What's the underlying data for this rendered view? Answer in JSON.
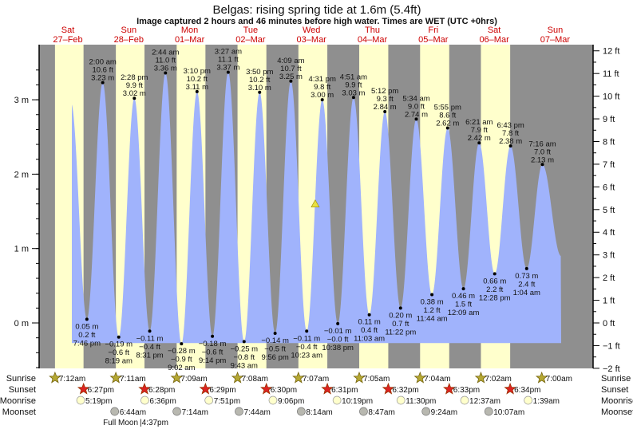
{
  "header": {
    "title": "Belgas: rising  spring tide at 1.6m (5.4ft)",
    "subtitle": "Image captured 2 hours and 46 minutes before high water. Times are WET (UTC +0hrs)"
  },
  "colors": {
    "night": "#8f8f8f",
    "day": "#ffffcc",
    "water": "#a0b3fc",
    "day_label": "#cc0000",
    "sunrise": "#b5a833",
    "sunset": "#dd2222",
    "moonrise": "#ffffcc",
    "moonset": "#b8b8b0",
    "marker": "#e8e040"
  },
  "rows": {
    "sunrise": "Sunrise",
    "sunset": "Sunset",
    "moonrise": "Moonrise",
    "moonset": "Moonset"
  },
  "moon_phase": {
    "label": "Full Moon",
    "time": "|4:37pm",
    "day": 1
  },
  "chart_data": {
    "type": "area",
    "title": "Belgas: rising  spring tide at 1.6m (5.4ft)",
    "days": [
      {
        "dow": "Sat",
        "date": "27–Feb"
      },
      {
        "dow": "Sun",
        "date": "28–Feb"
      },
      {
        "dow": "Mon",
        "date": "01–Mar"
      },
      {
        "dow": "Tue",
        "date": "02–Mar"
      },
      {
        "dow": "Wed",
        "date": "03–Mar"
      },
      {
        "dow": "Thu",
        "date": "04–Mar"
      },
      {
        "dow": "Fri",
        "date": "05–Mar"
      },
      {
        "dow": "Sat",
        "date": "06–Mar"
      },
      {
        "dow": "Sun",
        "date": "07–Mar"
      }
    ],
    "left_axis": {
      "unit": "m",
      "ticks": [
        "0 m",
        "1 m",
        "2 m",
        "3 m"
      ],
      "values": [
        0,
        1,
        2,
        3
      ]
    },
    "right_axis": {
      "unit": "ft",
      "ticks": [
        "−2 ft",
        "−1 ft",
        "0 ft",
        "1 ft",
        "2 ft",
        "3 ft",
        "4 ft",
        "5 ft",
        "6 ft",
        "7 ft",
        "8 ft",
        "9 ft",
        "10 ft",
        "11 ft",
        "12 ft"
      ],
      "values": [
        -2,
        -1,
        0,
        1,
        2,
        3,
        4,
        5,
        6,
        7,
        8,
        9,
        10,
        11,
        12
      ]
    },
    "current": {
      "day": 4,
      "time": "1:45 pm",
      "height_m": 1.6,
      "height_ft": 5.4
    },
    "extremes": [
      {
        "type": "low",
        "day": 0,
        "time": "7:46 pm",
        "m": "0.05 m",
        "ft": "0.2 ft",
        "h": 0.05
      },
      {
        "type": "high",
        "day": 1,
        "time": "2:00 am",
        "m": "3.23 m",
        "ft": "10.6 ft",
        "h": 3.23
      },
      {
        "type": "low",
        "day": 1,
        "time": "8:19 am",
        "m": "−0.19 m",
        "ft": "−0.6 ft",
        "h": -0.19
      },
      {
        "type": "high",
        "day": 1,
        "time": "2:28 pm",
        "m": "3.02 m",
        "ft": "9.9 ft",
        "h": 3.02
      },
      {
        "type": "low",
        "day": 1,
        "time": "8:31 pm",
        "m": "−0.11 m",
        "ft": "−0.4 ft",
        "h": -0.11
      },
      {
        "type": "high",
        "day": 2,
        "time": "2:44 am",
        "m": "3.36 m",
        "ft": "11.0 ft",
        "h": 3.36
      },
      {
        "type": "low",
        "day": 2,
        "time": "9:02 am",
        "m": "−0.28 m",
        "ft": "−0.9 ft",
        "h": -0.28
      },
      {
        "type": "high",
        "day": 2,
        "time": "3:10 pm",
        "m": "3.11 m",
        "ft": "10.2 ft",
        "h": 3.11
      },
      {
        "type": "low",
        "day": 2,
        "time": "9:14 pm",
        "m": "−0.18 m",
        "ft": "−0.6 ft",
        "h": -0.18
      },
      {
        "type": "high",
        "day": 3,
        "time": "3:27 am",
        "m": "3.37 m",
        "ft": "11.1 ft",
        "h": 3.37
      },
      {
        "type": "low",
        "day": 3,
        "time": "9:43 am",
        "m": "−0.25 m",
        "ft": "−0.8 ft",
        "h": -0.25
      },
      {
        "type": "high",
        "day": 3,
        "time": "3:50 pm",
        "m": "3.10 m",
        "ft": "10.2 ft",
        "h": 3.1
      },
      {
        "type": "low",
        "day": 3,
        "time": "9:56 pm",
        "m": "−0.14 m",
        "ft": "−0.5 ft",
        "h": -0.14
      },
      {
        "type": "high",
        "day": 4,
        "time": "4:09 am",
        "m": "3.25 m",
        "ft": "10.7 ft",
        "h": 3.25
      },
      {
        "type": "low",
        "day": 4,
        "time": "10:23 am",
        "m": "−0.11 m",
        "ft": "−0.4 ft",
        "h": -0.11
      },
      {
        "type": "high",
        "day": 4,
        "time": "4:31 pm",
        "m": "3.00 m",
        "ft": "9.8 ft",
        "h": 3.0
      },
      {
        "type": "low",
        "day": 4,
        "time": "10:38 pm",
        "m": "−0.01 m",
        "ft": "−0.0 ft",
        "h": -0.01
      },
      {
        "type": "high",
        "day": 5,
        "time": "4:51 am",
        "m": "3.03 m",
        "ft": "9.9 ft",
        "h": 3.03
      },
      {
        "type": "low",
        "day": 5,
        "time": "11:03 am",
        "m": "0.11 m",
        "ft": "0.4 ft",
        "h": 0.11
      },
      {
        "type": "high",
        "day": 5,
        "time": "5:12 pm",
        "m": "2.84 m",
        "ft": "9.3 ft",
        "h": 2.84
      },
      {
        "type": "low",
        "day": 5,
        "time": "11:22 pm",
        "m": "0.20 m",
        "ft": "0.7 ft",
        "h": 0.2
      },
      {
        "type": "high",
        "day": 6,
        "time": "5:34 am",
        "m": "2.74 m",
        "ft": "9.0 ft",
        "h": 2.74
      },
      {
        "type": "low",
        "day": 6,
        "time": "11:44 am",
        "m": "0.38 m",
        "ft": "1.2 ft",
        "h": 0.38
      },
      {
        "type": "high",
        "day": 6,
        "time": "5:55 pm",
        "m": "2.62 m",
        "ft": "8.6 ft",
        "h": 2.62
      },
      {
        "type": "low",
        "day": 7,
        "time": "12:09 am",
        "m": "0.46 m",
        "ft": "1.5 ft",
        "h": 0.46
      },
      {
        "type": "high",
        "day": 7,
        "time": "6:21 am",
        "m": "2.42 m",
        "ft": "7.9 ft",
        "h": 2.42
      },
      {
        "type": "low",
        "day": 7,
        "time": "12:28 pm",
        "m": "0.66 m",
        "ft": "2.2 ft",
        "h": 0.66
      },
      {
        "type": "high",
        "day": 7,
        "time": "6:43 pm",
        "m": "2.38 m",
        "ft": "7.8 ft",
        "h": 2.38
      },
      {
        "type": "low",
        "day": 8,
        "time": "1:04 am",
        "m": "0.73 m",
        "ft": "2.4 ft",
        "h": 0.73
      },
      {
        "type": "high",
        "day": 8,
        "time": "7:16 am",
        "m": "2.13 m",
        "ft": "7.0 ft",
        "h": 2.13
      }
    ],
    "sunrise": [
      {
        "day": 0,
        "time": "7:12am"
      },
      {
        "day": 1,
        "time": "7:11am"
      },
      {
        "day": 2,
        "time": "7:09am"
      },
      {
        "day": 3,
        "time": "7:08am"
      },
      {
        "day": 4,
        "time": "7:07am"
      },
      {
        "day": 5,
        "time": "7:05am"
      },
      {
        "day": 6,
        "time": "7:04am"
      },
      {
        "day": 7,
        "time": "7:02am"
      },
      {
        "day": 8,
        "time": "7:00am"
      }
    ],
    "sunset": [
      {
        "day": 0,
        "time": "6:27pm"
      },
      {
        "day": 1,
        "time": "6:28pm"
      },
      {
        "day": 2,
        "time": "6:29pm"
      },
      {
        "day": 3,
        "time": "6:30pm"
      },
      {
        "day": 4,
        "time": "6:31pm"
      },
      {
        "day": 5,
        "time": "6:32pm"
      },
      {
        "day": 6,
        "time": "6:33pm"
      },
      {
        "day": 7,
        "time": "6:34pm"
      }
    ],
    "moonrise": [
      {
        "day": 0,
        "time": "5:19pm"
      },
      {
        "day": 1,
        "time": "6:36pm"
      },
      {
        "day": 2,
        "time": "7:51pm"
      },
      {
        "day": 3,
        "time": "9:06pm"
      },
      {
        "day": 4,
        "time": "10:19pm"
      },
      {
        "day": 5,
        "time": "11:30pm"
      },
      {
        "day": 7,
        "time": "12:37am"
      },
      {
        "day": 8,
        "time": "1:39am"
      }
    ],
    "moonset": [
      {
        "day": 1,
        "time": "6:44am"
      },
      {
        "day": 2,
        "time": "7:14am"
      },
      {
        "day": 3,
        "time": "7:44am"
      },
      {
        "day": 4,
        "time": "8:14am"
      },
      {
        "day": 5,
        "time": "8:47am"
      },
      {
        "day": 6,
        "time": "9:24am"
      },
      {
        "day": 7,
        "time": "10:07am"
      }
    ]
  }
}
